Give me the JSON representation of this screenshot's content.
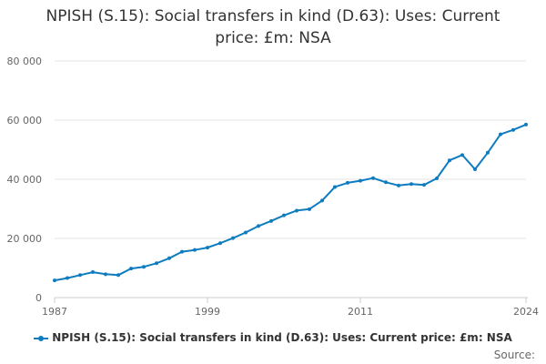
{
  "chart_data": {
    "type": "line",
    "title": "NPISH (S.15): Social transfers in kind (D.63): Uses: Current price: £m: NSA",
    "title_lines": [
      "NPISH (S.15): Social transfers in kind (D.63): Uses: Current",
      "price: £m: NSA"
    ],
    "xlabel": "",
    "ylabel": "",
    "xlim": [
      1987,
      2024
    ],
    "ylim": [
      0,
      80000
    ],
    "y_ticks": [
      0,
      20000,
      40000,
      60000,
      80000
    ],
    "y_tick_labels": [
      "0",
      "20 000",
      "40 000",
      "60 000",
      "80 000"
    ],
    "x_ticks": [
      1987,
      1999,
      2011,
      2024
    ],
    "x_tick_labels": [
      "1987",
      "1999",
      "2011",
      "2024"
    ],
    "grid": true,
    "legend": "bottom",
    "series": [
      {
        "name": "NPISH (S.15): Social transfers in kind (D.63): Uses: Current price: £m: NSA",
        "color": "#0f7cbf",
        "x": [
          1987,
          1988,
          1989,
          1990,
          1991,
          1992,
          1993,
          1994,
          1995,
          1996,
          1997,
          1998,
          1999,
          2000,
          2001,
          2002,
          2003,
          2004,
          2005,
          2006,
          2007,
          2008,
          2009,
          2010,
          2011,
          2012,
          2013,
          2014,
          2015,
          2016,
          2017,
          2018,
          2019,
          2020,
          2021,
          2022,
          2023,
          2024
        ],
        "values": [
          5800,
          6600,
          7600,
          8600,
          7900,
          7600,
          9800,
          10400,
          11600,
          13300,
          15500,
          16100,
          16900,
          18400,
          20100,
          22000,
          24200,
          25900,
          27800,
          29400,
          29900,
          32800,
          37400,
          38800,
          39500,
          40400,
          39000,
          37900,
          38400,
          38100,
          40300,
          46400,
          48200,
          43400,
          49000,
          55200,
          56700,
          58500
        ]
      }
    ]
  },
  "source": {
    "label": "Source:"
  }
}
